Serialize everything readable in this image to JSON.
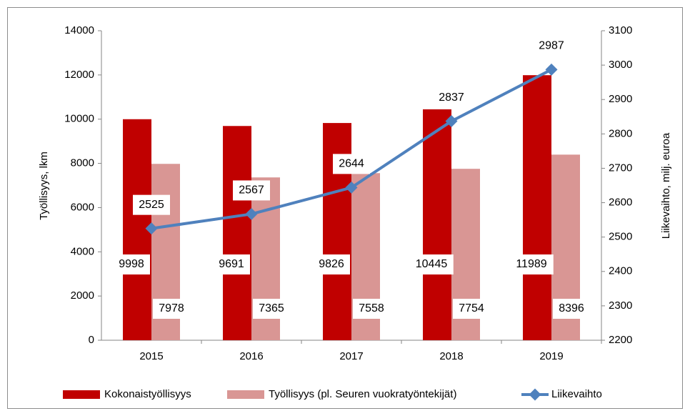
{
  "chart_data": {
    "type": "bar",
    "categories": [
      "2015",
      "2016",
      "2017",
      "2018",
      "2019"
    ],
    "y_label": "Työllisyys, lkm",
    "y2_label": "Liikevaihto, milj. euroa",
    "ylim": [
      0,
      14000
    ],
    "yticks": [
      0,
      2000,
      4000,
      6000,
      8000,
      10000,
      12000,
      14000
    ],
    "y2lim": [
      2200,
      3100
    ],
    "y2ticks": [
      2200,
      2300,
      2400,
      2500,
      2600,
      2700,
      2800,
      2900,
      3000,
      3100
    ],
    "series": [
      {
        "name": "Kokonaistyöllisyys",
        "type": "bar",
        "color": "#c00000",
        "values": [
          9998,
          9691,
          9826,
          10445,
          11989
        ]
      },
      {
        "name": "Työllisyys (pl. Seuren vuokratyöntekijät)",
        "type": "bar",
        "color": "#d99694",
        "values": [
          7978,
          7365,
          7558,
          7754,
          8396
        ]
      },
      {
        "name": "Liikevaihto",
        "type": "line",
        "axis": "y2",
        "color": "#4f81bd",
        "values": [
          2525,
          2567,
          2644,
          2837,
          2987
        ]
      }
    ],
    "legend": "bottom"
  }
}
